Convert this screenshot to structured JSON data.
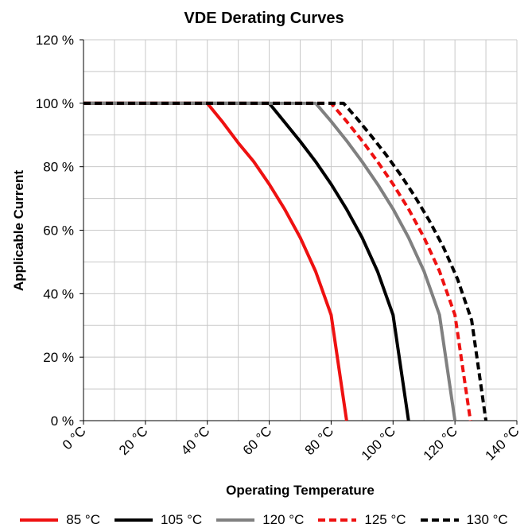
{
  "chart_data": {
    "type": "line",
    "title": "VDE Derating Curves",
    "xlabel": "Operating Temperature",
    "ylabel": "Applicable Current",
    "xlim": [
      0,
      140
    ],
    "ylim": [
      0,
      120
    ],
    "x_ticks": [
      0,
      20,
      40,
      60,
      80,
      100,
      120,
      140
    ],
    "x_tick_labels": [
      "0 °C",
      "20 °C",
      "40 °C",
      "60 °C",
      "80 °C",
      "100 °C",
      "120 °C",
      "140 °C"
    ],
    "y_ticks": [
      0,
      20,
      40,
      60,
      80,
      100,
      120
    ],
    "y_tick_labels": [
      "0 %",
      "20 %",
      "40 %",
      "60 %",
      "80 %",
      "100 %",
      "120 %"
    ],
    "grid": true,
    "legend_position": "bottom",
    "series": [
      {
        "name": "85 °C",
        "color": "#ee1111",
        "style": "solid",
        "x": [
          0,
          40,
          45,
          50,
          55,
          60,
          65,
          70,
          75,
          80,
          85
        ],
        "y": [
          100,
          100,
          94,
          87.5,
          81.6,
          74.5,
          66.6,
          57.7,
          47,
          33.3,
          0
        ]
      },
      {
        "name": "105 °C",
        "color": "#000000",
        "style": "solid",
        "x": [
          0,
          60,
          65,
          70,
          75,
          80,
          85,
          90,
          95,
          100,
          105
        ],
        "y": [
          100,
          100,
          94,
          88,
          81.6,
          74.5,
          66.6,
          57.7,
          47,
          33.3,
          0
        ]
      },
      {
        "name": "120 °C",
        "color": "#808080",
        "style": "solid",
        "x": [
          0,
          75,
          80,
          85,
          90,
          95,
          100,
          105,
          110,
          115,
          120
        ],
        "y": [
          100,
          100,
          94.3,
          88.2,
          81.6,
          74.5,
          66.7,
          57.7,
          47.1,
          33.3,
          0
        ]
      },
      {
        "name": "125 °C",
        "color": "#ee1111",
        "style": "dashed",
        "x": [
          0,
          80,
          85,
          90,
          95,
          100,
          105,
          110,
          115,
          120,
          125
        ],
        "y": [
          100,
          100,
          94.3,
          88.2,
          81.6,
          74.5,
          66.7,
          57.7,
          47.1,
          33.3,
          0
        ]
      },
      {
        "name": "130 °C",
        "color": "#000000",
        "style": "dashed",
        "x": [
          0,
          84,
          88.6,
          93.2,
          97.8,
          102.4,
          107,
          111.6,
          116.2,
          120.8,
          125.4,
          130
        ],
        "y": [
          100,
          100,
          94.9,
          89.4,
          83.7,
          77.5,
          70.7,
          63.2,
          54.8,
          44.7,
          31.6,
          0
        ]
      }
    ]
  }
}
